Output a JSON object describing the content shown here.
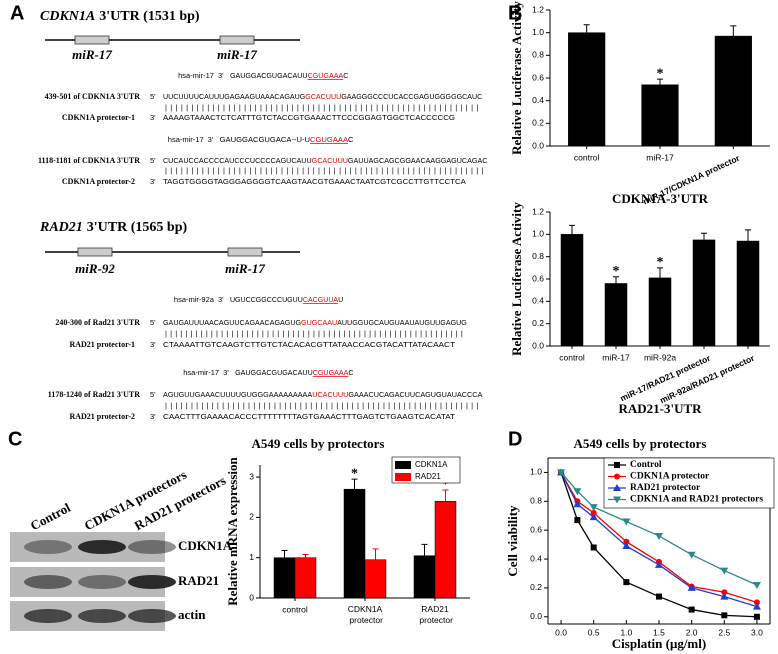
{
  "panel_a": {
    "label": "A",
    "genes": [
      {
        "name": "CDKN1A",
        "utr": "3'UTR (1531 bp)",
        "sites": [
          "miR-17",
          "miR-17"
        ],
        "alignments": [
          {
            "mirna": "hsa-mir-17",
            "mirna_end": "3'",
            "mirna_seq": [
              "GAUGGACGUGACAUU",
              "CGUGAAA",
              "C"
            ],
            "target": "439-501 of CDKN1A  3'UTR",
            "target_end": "5'",
            "target_seq": [
              "UUCUUUUCAUUUGAGAAGUAAACAGAUG",
              "GCACUUU",
              "GAAGGGCCCUCACCGAGUGGGGGCAUC"
            ],
            "pairs": "||||||||||||||||||||||||||||||||||||||||||||||||||||||||||||",
            "protector": "CDKN1A protector-1",
            "protector_end": "3'",
            "protector_seq": "AAAAGTAAACTCTCATTTGTCTACCGTGAAACTTCCCGGAGTGGCTCACCCCCG"
          },
          {
            "mirna": "hsa-mir-17",
            "mirna_end": "3'",
            "mirna_seq": [
              "GAUGGACGUGACA--U-U",
              "CGUGAAA",
              "C"
            ],
            "target": "1118-1181 of CDKN1A  3'UTR",
            "target_end": "5'",
            "target_seq": [
              "CUCAUCCACCCCAUCCCUCCCCAGUCAUU",
              "GCACUUU",
              "GAUUAGCAGCGGAACAAGGAGUCAGAC"
            ],
            "pairs": "|||||||||||||||||||||||||||||||||||||||||||||||||||||||||||||",
            "protector": "CDKN1A protector-2",
            "protector_end": "3'",
            "protector_seq": "TAGGTGGGGTAGGGAGGGGTCAAGTAACGTGAAACTAATCGTCGCCTTGTTCCTCA"
          }
        ]
      },
      {
        "name": "RAD21",
        "utr": "3'UTR (1565 bp)",
        "sites": [
          "miR-92",
          "miR-17"
        ],
        "alignments": [
          {
            "mirna": "hsa-mir-92a",
            "mirna_end": "3'",
            "mirna_seq": [
              "UGUCCGGCCCUGUU",
              "CACGUUA",
              "U"
            ],
            "target": "240-300 of Rad21 3'UTR",
            "target_end": "5'",
            "target_seq": [
              "GAUGAUUUAACAGUUCAGAACAGAGUG",
              "GUGCAAU",
              "AUUGGUGCAUGUAAUAUGUUGAGUG"
            ],
            "pairs": "|||||||||||||||||||||||||||||||||||||||||||||||||||||||||||",
            "protector": "RAD21 protector-1",
            "protector_end": "3'",
            "protector_seq": "CTAAAATTGTCAAGTCTTGTCTACACACGTTATAACCACGTACATTATACAACT"
          },
          {
            "mirna": "hsa-mir-17",
            "mirna_end": "3'",
            "mirna_seq": [
              "GAUGGACGUGACAUU",
              "CGUGAAA",
              "C"
            ],
            "target": "1178-1240 of Rad21 3'UTR",
            "target_end": "5'",
            "target_seq": [
              "AGUGUUGAAACUUUUGUGGGAAAAAAAAA",
              "UCACUUU",
              "GAAACUCAGACUUCAGUGUAUACCCA"
            ],
            "pairs": "|||||||||||||||||||||||||||||||||||||||||||||||||||||||||||||",
            "protector": "RAD21 protector-2",
            "protector_end": "3'",
            "protector_seq": "CAACTTTGAAAACACCCTTTTTTTTAGTGAAACTTTGAGTCTGAAGTCACATAT"
          }
        ]
      }
    ]
  },
  "panel_b": {
    "label": "B"
  },
  "panel_c": {
    "label": "C",
    "title": "A549 cells by protectors",
    "blot": {
      "lanes": [
        "Control",
        "CDKN1A protectors",
        "RAD21 protectors"
      ],
      "rows": [
        "CDKN1A",
        "RAD21",
        "actin"
      ]
    }
  },
  "panel_d": {
    "label": "D"
  },
  "chart_data": [
    {
      "type": "bar",
      "x_label": "CDKN1A-3'UTR",
      "y_label": "Relative Luciferase Activity",
      "categories": [
        "control",
        "miR-17",
        "miR-17/CDKN1A protector"
      ],
      "values": [
        1.0,
        0.54,
        0.97
      ],
      "errors": [
        0.07,
        0.05,
        0.09
      ],
      "color": "#000000",
      "significance": [
        {
          "index": 1,
          "label": "*"
        }
      ],
      "ylim": [
        0,
        1.2
      ],
      "yticks": [
        {
          "value": 0,
          "label": "0.0"
        },
        0.2,
        0.4,
        0.6,
        0.8,
        {
          "value": 1,
          "label": "1.0"
        },
        1.2
      ]
    },
    {
      "type": "bar",
      "x_label": "RAD21-3'UTR",
      "y_label": "Relative Luciferase Activity",
      "categories": [
        "control",
        "miR-17",
        "miR-92a",
        "miR-17/RAD21 protector",
        "miR-92a/RAD21 protector"
      ],
      "values": [
        1.0,
        0.56,
        0.61,
        0.95,
        0.94
      ],
      "errors": [
        0.08,
        0.06,
        0.09,
        0.06,
        0.1
      ],
      "color": "#000000",
      "significance": [
        {
          "index": 1,
          "label": "*"
        },
        {
          "index": 2,
          "label": "*"
        }
      ],
      "ylim": [
        0,
        1.2
      ],
      "yticks": [
        {
          "value": 0,
          "label": "0.0"
        },
        0.2,
        0.4,
        0.6,
        0.8,
        {
          "value": 1,
          "label": "1.0"
        },
        1.2
      ]
    },
    {
      "type": "bar",
      "y_label": "Relative mRNA expression",
      "categories": [
        "control",
        "CDKN1A protector",
        "RAD21 protector"
      ],
      "series": [
        {
          "name": "CDKN1A",
          "color": "#000000",
          "values": [
            1.0,
            2.7,
            1.05
          ],
          "errors": [
            0.18,
            0.25,
            0.28
          ]
        },
        {
          "name": "RAD21",
          "color": "#ff0000",
          "values": [
            1.0,
            0.95,
            2.4
          ],
          "errors": [
            0.08,
            0.27,
            0.28
          ]
        }
      ],
      "significance": [
        {
          "series": 0,
          "index": 1,
          "label": "*"
        },
        {
          "series": 1,
          "index": 2,
          "label": "*"
        }
      ],
      "ylim": [
        0,
        3.3
      ],
      "yticks": [
        0,
        1,
        2,
        3
      ],
      "legend": "top-right"
    },
    {
      "type": "line",
      "title": "A549 cells by protectors",
      "x_label": "Cisplatin (μg/ml)",
      "y_label": "Cell viability",
      "x": [
        0,
        0.25,
        0.5,
        1,
        1.5,
        2,
        2.5,
        3
      ],
      "series": [
        {
          "name": "Control",
          "color": "#000000",
          "marker": "square",
          "values": [
            1.0,
            0.67,
            0.48,
            0.24,
            0.14,
            0.05,
            0.01,
            0.0
          ]
        },
        {
          "name": "CDKN1A protector",
          "color": "#ff0000",
          "marker": "circle",
          "values": [
            1.0,
            0.8,
            0.72,
            0.52,
            0.38,
            0.21,
            0.17,
            0.1
          ]
        },
        {
          "name": "RAD21 protector",
          "color": "#1f3fd0",
          "marker": "triangle",
          "values": [
            1.0,
            0.78,
            0.69,
            0.49,
            0.36,
            0.2,
            0.14,
            0.07
          ]
        },
        {
          "name": "CDKN1A and RAD21 protectors",
          "color": "#2a8a86",
          "marker": "triangle-down",
          "values": [
            1.0,
            0.87,
            0.76,
            0.66,
            0.56,
            0.43,
            0.32,
            0.22
          ]
        }
      ],
      "xlim": [
        -0.2,
        3.2
      ],
      "xticks": [
        {
          "value": 0,
          "label": "0.0"
        },
        0.5,
        {
          "value": 1,
          "label": "1.0"
        },
        1.5,
        {
          "value": 2,
          "label": "2.0"
        },
        2.5,
        {
          "value": 3,
          "label": "3.0"
        }
      ],
      "ylim": [
        -0.05,
        1.1
      ],
      "yticks": [
        {
          "value": 0,
          "label": "0.0"
        },
        0.2,
        0.4,
        0.6,
        0.8,
        {
          "value": 1,
          "label": "1.0"
        }
      ],
      "legend": "top-right"
    }
  ]
}
